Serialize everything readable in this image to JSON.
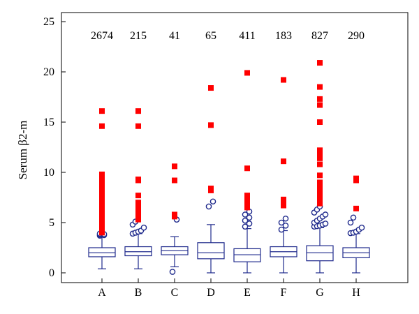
{
  "chart_data": {
    "type": "boxplot",
    "ylabel": "Serum β2-m",
    "ylim": [
      0,
      25
    ],
    "yticks": [
      0,
      5,
      10,
      15,
      20,
      25
    ],
    "grid": false,
    "colors": {
      "box": "#1f2a8c",
      "extreme_outlier": "#ff0000",
      "outlier": "#1f2a8c"
    },
    "categories": [
      "A",
      "B",
      "C",
      "D",
      "E",
      "F",
      "G",
      "H"
    ],
    "counts": [
      "2674",
      "215",
      "41",
      "65",
      "411",
      "183",
      "827",
      "290"
    ],
    "boxes": [
      {
        "category": "A",
        "whisker_low": 0.4,
        "q1": 1.6,
        "median": 2.0,
        "q3": 2.5,
        "whisker_high": 3.6,
        "outliers": [
          3.7,
          3.75,
          3.8,
          3.85,
          3.9
        ],
        "extremes": [
          4.0,
          4.3,
          4.6,
          4.9,
          5.2,
          5.5,
          5.8,
          6.1,
          6.4,
          6.7,
          7.0,
          7.3,
          7.6,
          8.0,
          8.5,
          9.0,
          9.4,
          9.8,
          14.6,
          16.1
        ]
      },
      {
        "category": "B",
        "whisker_low": 0.4,
        "q1": 1.7,
        "median": 2.1,
        "q3": 2.6,
        "whisker_high": 3.9,
        "outliers": [
          3.9,
          4.0,
          4.1,
          4.2,
          4.5,
          4.8,
          5.1
        ],
        "extremes": [
          5.3,
          5.6,
          5.9,
          6.2,
          6.5,
          7.0,
          7.7,
          9.2,
          9.3,
          14.6,
          16.1
        ]
      },
      {
        "category": "C",
        "whisker_low": 0.6,
        "q1": 1.8,
        "median": 2.2,
        "q3": 2.6,
        "whisker_high": 3.6,
        "outliers": [
          0.1,
          5.3
        ],
        "extremes": [
          5.6,
          5.8,
          9.2,
          10.6
        ]
      },
      {
        "category": "D",
        "whisker_low": 0.0,
        "q1": 1.4,
        "median": 2.0,
        "q3": 3.0,
        "whisker_high": 4.8,
        "outliers": [
          6.6,
          7.1
        ],
        "extremes": [
          8.2,
          8.4,
          14.7,
          18.4
        ]
      },
      {
        "category": "E",
        "whisker_low": 0.0,
        "q1": 1.1,
        "median": 1.8,
        "q3": 2.4,
        "whisker_high": 4.4,
        "outliers": [
          4.6,
          4.9,
          5.2,
          5.5,
          5.8,
          6.1
        ],
        "extremes": [
          6.5,
          6.9,
          7.3,
          7.7,
          10.4,
          19.9
        ]
      },
      {
        "category": "F",
        "whisker_low": 0.0,
        "q1": 1.6,
        "median": 2.1,
        "q3": 2.6,
        "whisker_high": 4.2,
        "outliers": [
          4.3,
          4.7,
          5.0,
          5.4
        ],
        "extremes": [
          6.7,
          7.1,
          7.3,
          11.1,
          19.2
        ]
      },
      {
        "category": "G",
        "whisker_low": 0.0,
        "q1": 1.2,
        "median": 2.0,
        "q3": 2.7,
        "whisker_high": 4.5,
        "outliers": [
          4.6,
          4.65,
          4.7,
          4.8,
          4.9,
          5.0,
          5.2,
          5.4,
          5.6,
          5.8,
          6.0,
          6.3,
          6.6
        ],
        "extremes": [
          6.9,
          7.2,
          7.5,
          7.8,
          8.1,
          8.4,
          8.7,
          9.0,
          9.7,
          10.8,
          11.4,
          11.8,
          12.2,
          15.0,
          16.7,
          17.3,
          18.5,
          20.9
        ]
      },
      {
        "category": "H",
        "whisker_low": 0.0,
        "q1": 1.5,
        "median": 2.0,
        "q3": 2.5,
        "whisker_high": 3.9,
        "outliers": [
          3.95,
          4.0,
          4.1,
          4.3,
          4.5,
          5.0,
          5.5
        ],
        "extremes": [
          6.4,
          9.2,
          9.4
        ]
      }
    ]
  }
}
